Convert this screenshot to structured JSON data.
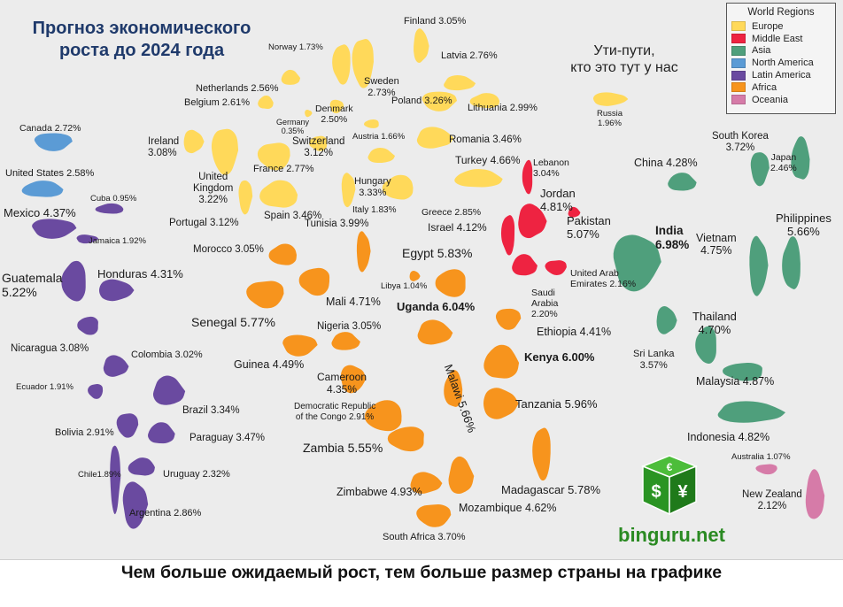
{
  "title": {
    "line1": "Прогноз экономического",
    "line2": "роста до 2024 года"
  },
  "caption": {
    "line1": "Ути-пути,",
    "line2": "кто это тут у нас"
  },
  "footer": "Чем больше ожидаемый рост, тем больше размер страны на графике",
  "logo": {
    "text": "binguru.net",
    "symbols": [
      "€",
      "$",
      "¥"
    ]
  },
  "legend": {
    "title": "World Regions",
    "items": [
      {
        "label": "Europe",
        "color": "#ffd95a"
      },
      {
        "label": "Middle East",
        "color": "#ee2341"
      },
      {
        "label": "Asia",
        "color": "#4f9f7c"
      },
      {
        "label": "North America",
        "color": "#5b9bd5"
      },
      {
        "label": "Latin America",
        "color": "#6a4aa0"
      },
      {
        "label": "Africa",
        "color": "#f7941d"
      },
      {
        "label": "Oceania",
        "color": "#d67ba8"
      }
    ]
  },
  "chart_data": {
    "type": "table",
    "title": "Прогноз экономического роста до 2024 года",
    "columns": [
      "country",
      "growth_pct",
      "region"
    ],
    "countries": [
      {
        "name": "Finland",
        "growth": 3.05,
        "region": "Europe",
        "label": "Finland  3.05%"
      },
      {
        "name": "Norway",
        "growth": 1.73,
        "region": "Europe",
        "label": "Norway 1.73%"
      },
      {
        "name": "Latvia",
        "growth": 2.76,
        "region": "Europe",
        "label": "Latvia  2.76%"
      },
      {
        "name": "Sweden",
        "growth": 2.73,
        "region": "Europe",
        "label": [
          "Sweden",
          "2.73%"
        ]
      },
      {
        "name": "Netherlands",
        "growth": 2.56,
        "region": "Europe",
        "label": "Netherlands 2.56%"
      },
      {
        "name": "Poland",
        "growth": 3.26,
        "region": "Europe",
        "label": "Poland 3.26%"
      },
      {
        "name": "Belgium",
        "growth": 2.61,
        "region": "Europe",
        "label": "Belgium 2.61%"
      },
      {
        "name": "Denmark",
        "growth": 2.5,
        "region": "Europe",
        "label": [
          "Denmark",
          "2.50%"
        ]
      },
      {
        "name": "Lithuania",
        "growth": 2.99,
        "region": "Europe",
        "label": "Lithuania 2.99%"
      },
      {
        "name": "Germany",
        "growth": 0.35,
        "region": "Europe",
        "label": [
          "Germany",
          "0.35%"
        ]
      },
      {
        "name": "Austria",
        "growth": 1.66,
        "region": "Europe",
        "label": "Austria 1.66%"
      },
      {
        "name": "Ireland",
        "growth": 3.08,
        "region": "Europe",
        "label": [
          "Ireland",
          "3.08%"
        ]
      },
      {
        "name": "Switzerland",
        "growth": 3.12,
        "region": "Europe",
        "label": [
          "Switzerland",
          "3.12%"
        ]
      },
      {
        "name": "Romania",
        "growth": 3.46,
        "region": "Europe",
        "label": "Romania 3.46%"
      },
      {
        "name": "France",
        "growth": 2.77,
        "region": "Europe",
        "label": "France 2.77%"
      },
      {
        "name": "Hungary",
        "growth": 3.33,
        "region": "Europe",
        "label": [
          "Hungary",
          "3.33%"
        ]
      },
      {
        "name": "United Kingdom",
        "growth": 3.22,
        "region": "Europe",
        "label": [
          "United",
          "Kingdom",
          "3.22%"
        ]
      },
      {
        "name": "Turkey",
        "growth": 4.66,
        "region": "Europe",
        "label": "Turkey 4.66%"
      },
      {
        "name": "Portugal",
        "growth": 3.12,
        "region": "Europe",
        "label": "Portugal 3.12%"
      },
      {
        "name": "Spain",
        "growth": 3.46,
        "region": "Europe",
        "label": "Spain 3.46%"
      },
      {
        "name": "Italy",
        "growth": 1.83,
        "region": "Europe",
        "label": "Italy 1.83%"
      },
      {
        "name": "Greece",
        "growth": 2.85,
        "region": "Europe",
        "label": "Greece 2.85%"
      },
      {
        "name": "Russia",
        "growth": 1.96,
        "region": "Europe",
        "label": [
          "Russia",
          "1.96%"
        ]
      },
      {
        "name": "Lebanon",
        "growth": 3.04,
        "region": "Middle East",
        "label": [
          "Lebanon",
          "3.04%"
        ]
      },
      {
        "name": "Jordan",
        "growth": 4.81,
        "region": "Middle East",
        "label": [
          "Jordan",
          "4.81%"
        ]
      },
      {
        "name": "Israel",
        "growth": 4.12,
        "region": "Middle East",
        "label": "Israel 4.12%"
      },
      {
        "name": "Pakistan",
        "growth": 5.07,
        "region": "Middle East",
        "label": [
          "Pakistan",
          "5.07%"
        ]
      },
      {
        "name": "United Arab Emirates",
        "growth": 2.16,
        "region": "Middle East",
        "label": [
          "United Arab",
          "Emirates 2.16%"
        ]
      },
      {
        "name": "Saudi Arabia",
        "growth": 2.2,
        "region": "Middle East",
        "label": [
          "Saudi",
          "Arabia",
          "2.20%"
        ]
      },
      {
        "name": "Canada",
        "growth": 2.72,
        "region": "North America",
        "label": "Canada 2.72%"
      },
      {
        "name": "United States",
        "growth": 2.58,
        "region": "North America",
        "label": "United States 2.58%"
      },
      {
        "name": "Mexico",
        "growth": 4.37,
        "region": "Latin America",
        "label": "Mexico 4.37%"
      },
      {
        "name": "Cuba",
        "growth": 0.95,
        "region": "Latin America",
        "label": "Cuba 0.95%"
      },
      {
        "name": "Jamaica",
        "growth": 1.92,
        "region": "Latin America",
        "label": "Jamaica 1.92%"
      },
      {
        "name": "Guatemala",
        "growth": 5.22,
        "region": "Latin America",
        "label": [
          "Guatemala",
          "5.22%"
        ]
      },
      {
        "name": "Honduras",
        "growth": 4.31,
        "region": "Latin America",
        "label": "Honduras  4.31%"
      },
      {
        "name": "Nicaragua",
        "growth": 3.08,
        "region": "Latin America",
        "label": "Nicaragua 3.08%"
      },
      {
        "name": "Colombia",
        "growth": 3.02,
        "region": "Latin America",
        "label": "Colombia 3.02%"
      },
      {
        "name": "Ecuador",
        "growth": 1.91,
        "region": "Latin America",
        "label": "Ecuador 1.91%"
      },
      {
        "name": "Brazil",
        "growth": 3.34,
        "region": "Latin America",
        "label": "Brazil 3.34%"
      },
      {
        "name": "Bolivia",
        "growth": 2.91,
        "region": "Latin America",
        "label": "Bolivia 2.91%"
      },
      {
        "name": "Paraguay",
        "growth": 3.47,
        "region": "Latin America",
        "label": "Paraguay 3.47%"
      },
      {
        "name": "Chile",
        "growth": 1.89,
        "region": "Latin America",
        "label": "Chile1.89%"
      },
      {
        "name": "Uruguay",
        "growth": 2.32,
        "region": "Latin America",
        "label": "Uruguay 2.32%"
      },
      {
        "name": "Argentina",
        "growth": 2.86,
        "region": "Latin America",
        "label": "Argentina 2.86%"
      },
      {
        "name": "Morocco",
        "growth": 3.05,
        "region": "Africa",
        "label": "Morocco 3.05%"
      },
      {
        "name": "Tunisia",
        "growth": 3.99,
        "region": "Africa",
        "label": "Tunisia 3.99%"
      },
      {
        "name": "Egypt",
        "growth": 5.83,
        "region": "Africa",
        "label": "Egypt 5.83%"
      },
      {
        "name": "Libya",
        "growth": 1.04,
        "region": "Africa",
        "label": "Libya 1.04%"
      },
      {
        "name": "Mali",
        "growth": 4.71,
        "region": "Africa",
        "label": "Mali 4.71%"
      },
      {
        "name": "Uganda",
        "growth": 6.04,
        "region": "Africa",
        "label": "Uganda 6.04%"
      },
      {
        "name": "Senegal",
        "growth": 5.77,
        "region": "Africa",
        "label": "Senegal 5.77%"
      },
      {
        "name": "Nigeria",
        "growth": 3.05,
        "region": "Africa",
        "label": "Nigeria 3.05%"
      },
      {
        "name": "Ethiopia",
        "growth": 4.41,
        "region": "Africa",
        "label": "Ethiopia 4.41%"
      },
      {
        "name": "Kenya",
        "growth": 6.0,
        "region": "Africa",
        "label": "Kenya 6.00%"
      },
      {
        "name": "Guinea",
        "growth": 4.49,
        "region": "Africa",
        "label": "Guinea 4.49%"
      },
      {
        "name": "Malawi",
        "growth": 5.66,
        "region": "Africa",
        "label": "Malawi 5.66%"
      },
      {
        "name": "Cameroon",
        "growth": 4.35,
        "region": "Africa",
        "label": [
          "Cameroon",
          "4.35%"
        ]
      },
      {
        "name": "Democratic Republic of the Congo",
        "growth": 2.91,
        "region": "Africa",
        "label": [
          "Democratic Republic",
          "of the Congo 2.91%"
        ]
      },
      {
        "name": "Tanzania",
        "growth": 5.96,
        "region": "Africa",
        "label": "Tanzania 5.96%"
      },
      {
        "name": "Zambia",
        "growth": 5.55,
        "region": "Africa",
        "label": "Zambia 5.55%"
      },
      {
        "name": "Zimbabwe",
        "growth": 4.93,
        "region": "Africa",
        "label": "Zimbabwe 4.93%"
      },
      {
        "name": "Madagascar",
        "growth": 5.78,
        "region": "Africa",
        "label": "Madagascar  5.78%"
      },
      {
        "name": "Mozambique",
        "growth": 4.62,
        "region": "Africa",
        "label": "Mozambique 4.62%"
      },
      {
        "name": "South Africa",
        "growth": 3.7,
        "region": "Africa",
        "label": "South Africa 3.70%"
      },
      {
        "name": "China",
        "growth": 4.28,
        "region": "Asia",
        "label": "China 4.28%"
      },
      {
        "name": "South Korea",
        "growth": 3.72,
        "region": "Asia",
        "label": [
          "South Korea",
          "3.72%"
        ]
      },
      {
        "name": "Japan",
        "growth": 2.46,
        "region": "Asia",
        "label": [
          "Japan",
          "2.46%"
        ]
      },
      {
        "name": "India",
        "growth": 6.98,
        "region": "Asia",
        "label": [
          "India",
          "6.98%"
        ]
      },
      {
        "name": "Philippines",
        "growth": 5.66,
        "region": "Asia",
        "label": [
          "Philippines",
          "5.66%"
        ]
      },
      {
        "name": "Vietnam",
        "growth": 4.75,
        "region": "Asia",
        "label": [
          "Vietnam",
          "4.75%"
        ]
      },
      {
        "name": "Thailand",
        "growth": 4.7,
        "region": "Asia",
        "label": [
          "Thailand",
          "4.70%"
        ]
      },
      {
        "name": "Sri Lanka",
        "growth": 3.57,
        "region": "Asia",
        "label": [
          "Sri Lanka",
          "3.57%"
        ]
      },
      {
        "name": "Malaysia",
        "growth": 4.87,
        "region": "Asia",
        "label": "Malaysia 4.87%"
      },
      {
        "name": "Indonesia",
        "growth": 4.82,
        "region": "Asia",
        "label": "Indonesia 4.82%"
      },
      {
        "name": "Australia",
        "growth": 1.07,
        "region": "Oceania",
        "label": "Australia 1.07%"
      },
      {
        "name": "New Zealand",
        "growth": 2.12,
        "region": "Oceania",
        "label": [
          "New Zealand",
          "2.12%"
        ]
      }
    ]
  }
}
